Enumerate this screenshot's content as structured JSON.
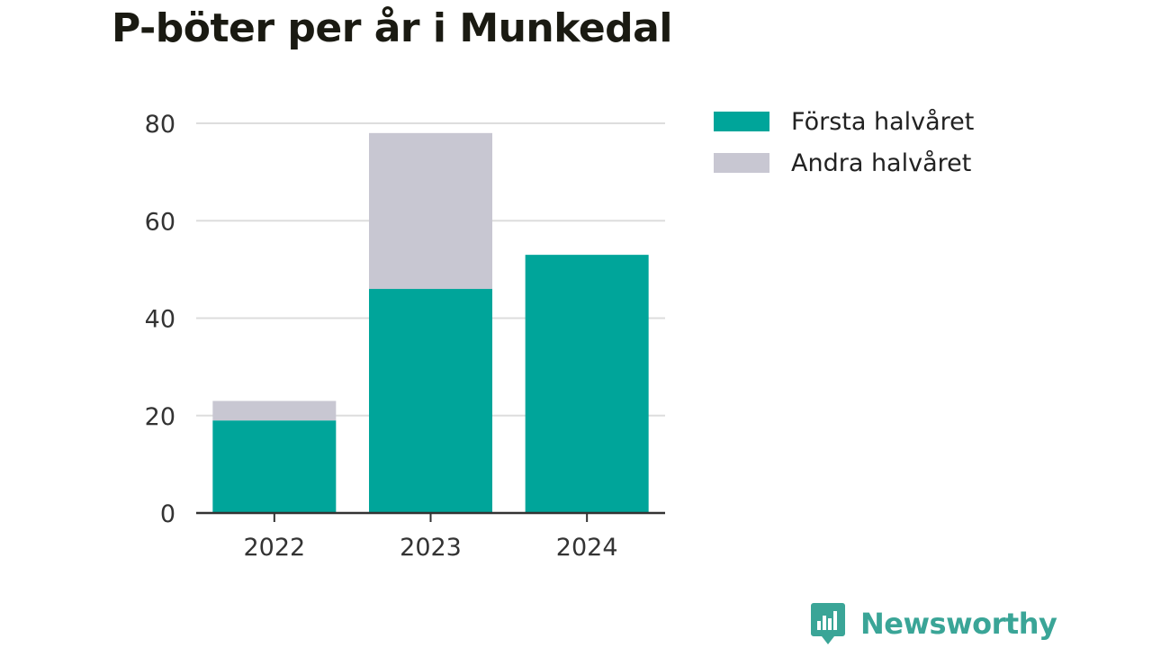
{
  "title": "P-böter per år i Munkedal",
  "brand": {
    "name": "Newsworthy",
    "icon": "newsworthy-logo-icon",
    "color": "#3aa597"
  },
  "legend": [
    {
      "label": "Första halvåret",
      "color": "#00a59a"
    },
    {
      "label": "Andra halvåret",
      "color": "#c8c7d2"
    }
  ],
  "chart_data": {
    "type": "bar",
    "stacked": true,
    "categories": [
      "2022",
      "2023",
      "2024"
    ],
    "series": [
      {
        "name": "Första halvåret",
        "values": [
          19,
          46,
          53
        ],
        "color": "#00a59a"
      },
      {
        "name": "Andra halvåret",
        "values": [
          4,
          32,
          0
        ],
        "color": "#c8c7d2"
      }
    ],
    "title": "P-böter per år i Munkedal",
    "xlabel": "",
    "ylabel": "",
    "ylim": [
      0,
      80
    ],
    "yticks": [
      0,
      20,
      40,
      60,
      80
    ],
    "grid": true,
    "legend_position": "top-right"
  }
}
